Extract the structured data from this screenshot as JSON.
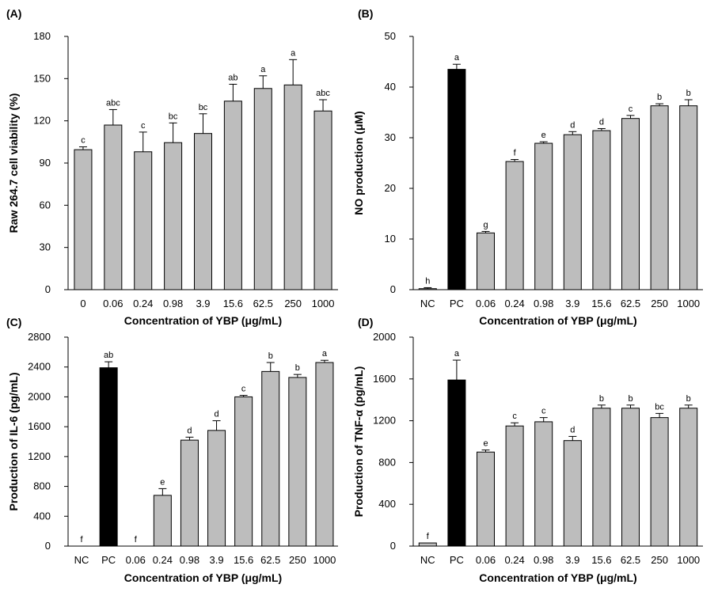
{
  "figure": {
    "colors": {
      "bar": "#bdbdbd",
      "bar_pc": "#000000",
      "axis": "#000000"
    }
  },
  "chart_data": [
    {
      "panel": "(A)",
      "type": "bar",
      "categories": [
        "0",
        "0.06",
        "0.24",
        "0.98",
        "3.9",
        "15.6",
        "62.5",
        "250",
        "1000"
      ],
      "values": [
        99.5,
        117,
        98,
        104.5,
        111,
        134,
        143,
        145.5,
        127
      ],
      "errors": [
        2,
        11,
        14,
        14,
        14,
        12,
        9,
        18,
        8
      ],
      "labels": [
        "c",
        "abc",
        "c",
        "bc",
        "bc",
        "ab",
        "a",
        "a",
        "abc"
      ],
      "colors": [
        "#bdbdbd",
        "#bdbdbd",
        "#bdbdbd",
        "#bdbdbd",
        "#bdbdbd",
        "#bdbdbd",
        "#bdbdbd",
        "#bdbdbd",
        "#bdbdbd"
      ],
      "xlabel": "Concentration of YBP (μg/mL)",
      "ylabel": "Raw 264.7 cell viability (%)",
      "ylim": [
        0,
        180
      ],
      "yticks": [
        0,
        30,
        60,
        90,
        120,
        150,
        180
      ]
    },
    {
      "panel": "(B)",
      "type": "bar",
      "categories": [
        "NC",
        "PC",
        "0.06",
        "0.24",
        "0.98",
        "3.9",
        "15.6",
        "62.5",
        "250",
        "1000"
      ],
      "values": [
        0.2,
        43.5,
        11.2,
        25.3,
        28.9,
        30.6,
        31.4,
        33.8,
        36.3,
        36.3
      ],
      "errors": [
        0.2,
        1.0,
        0.3,
        0.4,
        0.3,
        0.6,
        0.4,
        0.6,
        0.4,
        1.2
      ],
      "labels": [
        "h",
        "a",
        "g",
        "f",
        "e",
        "d",
        "d",
        "c",
        "b",
        "b"
      ],
      "colors": [
        "#bdbdbd",
        "#000000",
        "#bdbdbd",
        "#bdbdbd",
        "#bdbdbd",
        "#bdbdbd",
        "#bdbdbd",
        "#bdbdbd",
        "#bdbdbd",
        "#bdbdbd"
      ],
      "xlabel": "Concentration of YBP (μg/mL)",
      "ylabel": "NO production (μM)",
      "ylim": [
        0,
        50
      ],
      "yticks": [
        0,
        10,
        20,
        30,
        40,
        50
      ]
    },
    {
      "panel": "(C)",
      "type": "bar",
      "categories": [
        "NC",
        "PC",
        "0.06",
        "0.24",
        "0.98",
        "3.9",
        "15.6",
        "62.5",
        "250",
        "1000"
      ],
      "values": [
        0,
        2390,
        0,
        680,
        1420,
        1550,
        2000,
        2340,
        2260,
        2460
      ],
      "errors": [
        0,
        80,
        0,
        90,
        40,
        130,
        20,
        120,
        40,
        30
      ],
      "labels": [
        "f",
        "ab",
        "f",
        "e",
        "d",
        "d",
        "c",
        "b",
        "b",
        "a"
      ],
      "colors": [
        "#bdbdbd",
        "#000000",
        "#bdbdbd",
        "#bdbdbd",
        "#bdbdbd",
        "#bdbdbd",
        "#bdbdbd",
        "#bdbdbd",
        "#bdbdbd",
        "#bdbdbd"
      ],
      "xlabel": "Concentration of YBP (μg/mL)",
      "ylabel": "Production of IL-6 (pg/mL)",
      "ylim": [
        0,
        2800
      ],
      "yticks": [
        0,
        400,
        800,
        1200,
        1600,
        2000,
        2400,
        2800
      ]
    },
    {
      "panel": "(D)",
      "type": "bar",
      "categories": [
        "NC",
        "PC",
        "0.06",
        "0.24",
        "0.98",
        "3.9",
        "15.6",
        "62.5",
        "250",
        "1000"
      ],
      "values": [
        30,
        1590,
        900,
        1150,
        1190,
        1010,
        1320,
        1320,
        1230,
        1320
      ],
      "errors": [
        0,
        190,
        20,
        30,
        40,
        40,
        30,
        30,
        40,
        30
      ],
      "labels": [
        "f",
        "a",
        "e",
        "c",
        "c",
        "d",
        "b",
        "b",
        "bc",
        "b"
      ],
      "colors": [
        "#bdbdbd",
        "#000000",
        "#bdbdbd",
        "#bdbdbd",
        "#bdbdbd",
        "#bdbdbd",
        "#bdbdbd",
        "#bdbdbd",
        "#bdbdbd",
        "#bdbdbd"
      ],
      "xlabel": "Concentration of YBP (μg/mL)",
      "ylabel": "Production of TNF-α (pg/mL)",
      "ylim": [
        0,
        2000
      ],
      "yticks": [
        0,
        400,
        800,
        1200,
        1600,
        2000
      ]
    }
  ]
}
